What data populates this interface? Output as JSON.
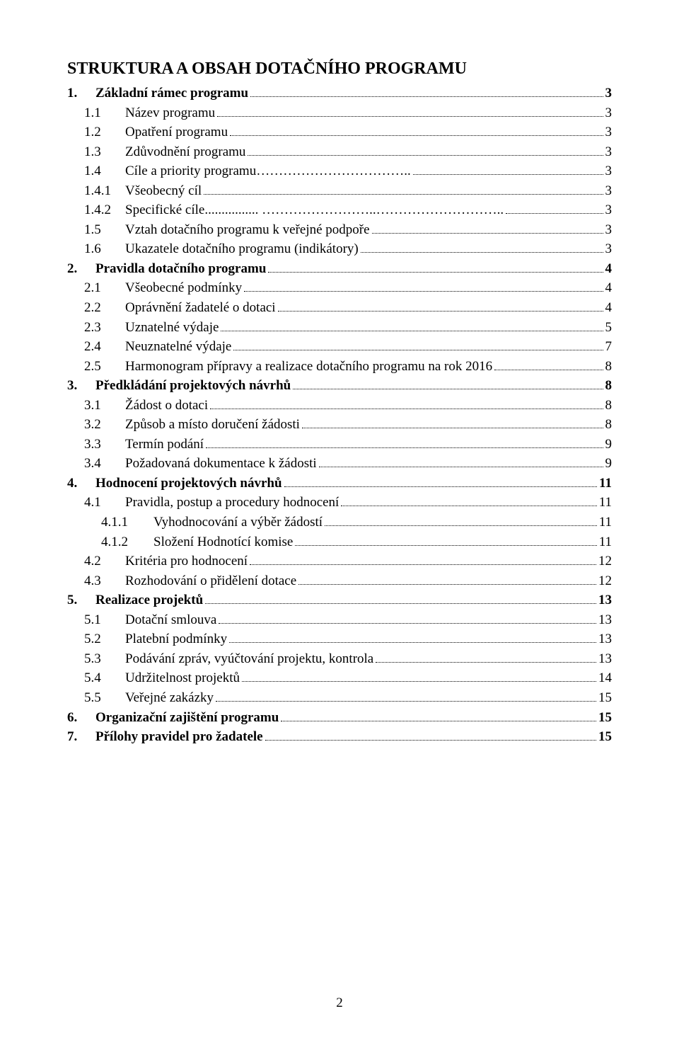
{
  "title": "STRUKTURA A OBSAH DOTAČNÍHO PROGRAMU",
  "page_number": "2",
  "items": [
    {
      "lvl": 0,
      "num": "1.",
      "txt": "Základní rámec programu",
      "pg": "3"
    },
    {
      "lvl": 1,
      "num": "1.1",
      "txt": "Název programu",
      "pg": "3"
    },
    {
      "lvl": 1,
      "num": "1.2",
      "txt": "Opatření programu",
      "pg": "3"
    },
    {
      "lvl": 1,
      "num": "1.3",
      "txt": "Zdůvodnění programu",
      "pg": "3"
    },
    {
      "lvl": 1,
      "num": "1.4",
      "txt": "Cíle a priority programu……………………………..",
      "pg": "3"
    },
    {
      "lvl": 1,
      "num": "1.4.1",
      "txt": "Všeobecný cíl",
      "pg": "3"
    },
    {
      "lvl": 1,
      "num": "1.4.2",
      "txt": "Specifické cíle................ ……………………..………………………..",
      "pg": "3"
    },
    {
      "lvl": 1,
      "num": "1.5",
      "txt": "Vztah dotačního programu k veřejné podpoře",
      "pg": "3"
    },
    {
      "lvl": 1,
      "num": "1.6",
      "txt": "Ukazatele dotačního programu (indikátory)",
      "pg": "3"
    },
    {
      "lvl": 0,
      "num": "2.",
      "txt": "Pravidla dotačního programu",
      "pg": "4"
    },
    {
      "lvl": 1,
      "num": "2.1",
      "txt": "Všeobecné podmínky",
      "pg": "4"
    },
    {
      "lvl": 1,
      "num": "2.2",
      "txt": "Oprávnění žadatelé o dotaci",
      "pg": "4"
    },
    {
      "lvl": 1,
      "num": "2.3",
      "txt": "Uznatelné výdaje",
      "pg": "5"
    },
    {
      "lvl": 1,
      "num": "2.4",
      "txt": "Neuznatelné výdaje",
      "pg": "7"
    },
    {
      "lvl": 1,
      "num": "2.5",
      "txt": "Harmonogram přípravy a realizace dotačního programu na rok 2016",
      "pg": "8"
    },
    {
      "lvl": 0,
      "num": "3.",
      "txt": "Předkládání projektových návrhů",
      "pg": "8"
    },
    {
      "lvl": 1,
      "num": "3.1",
      "txt": "Žádost o dotaci",
      "pg": "8"
    },
    {
      "lvl": 1,
      "num": "3.2",
      "txt": "Způsob a místo doručení žádosti",
      "pg": "8"
    },
    {
      "lvl": 1,
      "num": "3.3",
      "txt": "Termín podání",
      "pg": "9"
    },
    {
      "lvl": 1,
      "num": "3.4",
      "txt": "Požadovaná dokumentace k žádosti",
      "pg": "9"
    },
    {
      "lvl": 0,
      "num": "4.",
      "txt": "Hodnocení projektových návrhů",
      "pg": "11"
    },
    {
      "lvl": 1,
      "num": "4.1",
      "txt": "Pravidla, postup a procedury hodnocení",
      "pg": "11"
    },
    {
      "lvl": 2,
      "num": "4.1.1",
      "txt": "Vyhodnocování a výběr žádostí",
      "pg": "11"
    },
    {
      "lvl": 2,
      "num": "4.1.2",
      "txt": "Složení Hodnotící komise",
      "pg": "11"
    },
    {
      "lvl": 1,
      "num": "4.2",
      "txt": "Kritéria pro hodnocení",
      "pg": "12"
    },
    {
      "lvl": 1,
      "num": "4.3",
      "txt": "Rozhodování o přidělení dotace",
      "pg": "12"
    },
    {
      "lvl": 0,
      "num": "5.",
      "txt": "Realizace projektů",
      "pg": "13"
    },
    {
      "lvl": 1,
      "num": "5.1",
      "txt": "Dotační smlouva",
      "pg": "13"
    },
    {
      "lvl": 1,
      "num": "5.2",
      "txt": "Platební podmínky",
      "pg": "13"
    },
    {
      "lvl": 1,
      "num": "5.3",
      "txt": "Podávání zpráv, vyúčtování projektu, kontrola",
      "pg": "13"
    },
    {
      "lvl": 1,
      "num": "5.4",
      "txt": "Udržitelnost projektů",
      "pg": "14"
    },
    {
      "lvl": 1,
      "num": "5.5",
      "txt": "Veřejné zakázky",
      "pg": "15"
    },
    {
      "lvl": 0,
      "num": "6.",
      "txt": "Organizační zajištění programu",
      "pg": "15"
    },
    {
      "lvl": 0,
      "num": "7.",
      "txt": "Přílohy pravidel pro žadatele",
      "pg": "15"
    }
  ]
}
